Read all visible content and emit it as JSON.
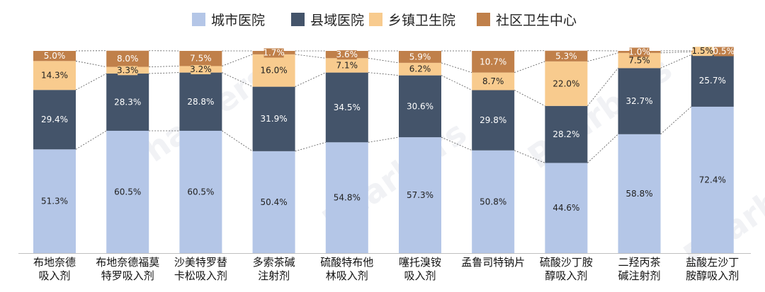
{
  "chart_data": {
    "type": "bar",
    "stacked": true,
    "percent": true,
    "title": "",
    "xlabel": "",
    "ylabel": "",
    "ylim": [
      0,
      100
    ],
    "grid": false,
    "legend_position": "top",
    "series_connectors": true,
    "watermark": "Pharbers",
    "categories": [
      [
        "布地奈德",
        "吸入剂"
      ],
      [
        "布地奈德福莫",
        "特罗吸入剂"
      ],
      [
        "沙美特罗替",
        "卡松吸入剂"
      ],
      [
        "多索茶碱",
        "注射剂"
      ],
      [
        "硫酸特布他",
        "林吸入剂"
      ],
      [
        "噻托溴铵",
        "吸入剂"
      ],
      [
        "孟鲁司特钠片"
      ],
      [
        "硫酸沙丁胺",
        "醇吸入剂"
      ],
      [
        "二羟丙茶",
        "碱注射剂"
      ],
      [
        "盐酸左沙丁",
        "胺醇吸入剂"
      ]
    ],
    "series": [
      {
        "name": "城市医院",
        "color": "#b4c6e7",
        "label_color": "#222222",
        "values": [
          51.3,
          60.5,
          60.5,
          50.4,
          54.8,
          57.3,
          50.8,
          44.6,
          58.8,
          72.4
        ],
        "labels": [
          "51.3%",
          "60.5%",
          "60.5%",
          "50.4%",
          "54.8%",
          "57.3%",
          "50.8%",
          "44.6%",
          "58.8%",
          "72.4%"
        ]
      },
      {
        "name": "县域医院",
        "color": "#44546a",
        "label_color": "#ffffff",
        "values": [
          29.4,
          28.3,
          28.8,
          31.9,
          34.5,
          30.6,
          29.8,
          28.2,
          32.7,
          25.7
        ],
        "labels": [
          "29.4%",
          "28.3%",
          "28.8%",
          "31.9%",
          "34.5%",
          "30.6%",
          "29.8%",
          "28.2%",
          "32.7%",
          "25.7%"
        ]
      },
      {
        "name": "乡镇卫生院",
        "color": "#f8cb8e",
        "label_color": "#222222",
        "values": [
          14.3,
          3.3,
          3.2,
          16.0,
          7.1,
          6.2,
          8.7,
          22.0,
          7.5,
          1.5
        ],
        "labels": [
          "14.3%",
          "3.3%",
          "3.2%",
          "16.0%",
          "7.1%",
          "6.2%",
          "8.7%",
          "22.0%",
          "7.5%",
          "1.5%"
        ]
      },
      {
        "name": "社区卫生中心",
        "color": "#c0804a",
        "label_color": "#ffffff",
        "values": [
          5.0,
          8.0,
          7.5,
          1.7,
          3.6,
          5.9,
          10.7,
          5.3,
          1.0,
          0.5
        ],
        "labels": [
          "5.0%",
          "8.0%",
          "7.5%",
          "1.7%",
          "3.6%",
          "5.9%",
          "10.7%",
          "5.3%",
          "1.0%",
          "0.5%"
        ]
      }
    ]
  }
}
